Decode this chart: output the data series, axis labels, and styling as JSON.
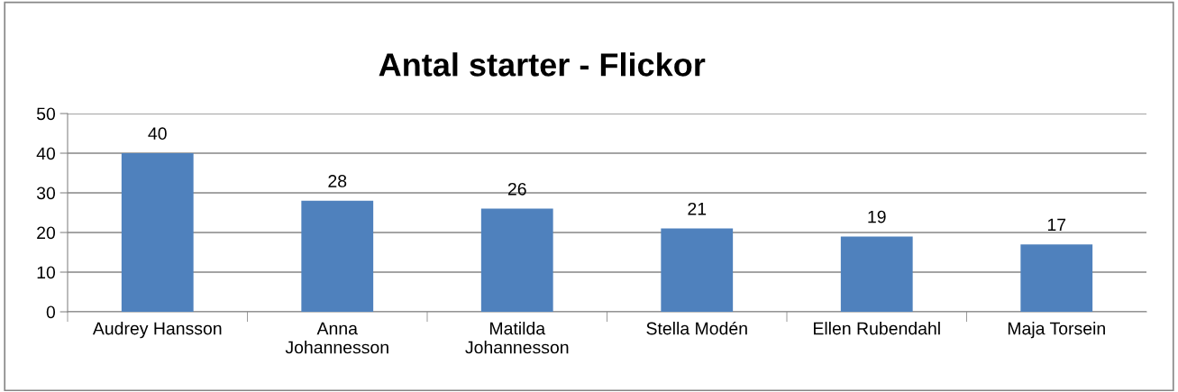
{
  "chart_data": {
    "type": "bar",
    "title": "Antal starter - Flickor",
    "categories": [
      "Audrey Hansson",
      "Anna Johannesson",
      "Matilda Johannesson",
      "Stella Modén",
      "Ellen Rubendahl",
      "Maja Torsein"
    ],
    "values": [
      40,
      28,
      26,
      21,
      19,
      17
    ],
    "color": "#4f81bd",
    "ylim": [
      0,
      50
    ],
    "yticks": [
      0,
      10,
      20,
      30,
      40,
      50
    ],
    "grid": "y",
    "data_labels": true
  }
}
